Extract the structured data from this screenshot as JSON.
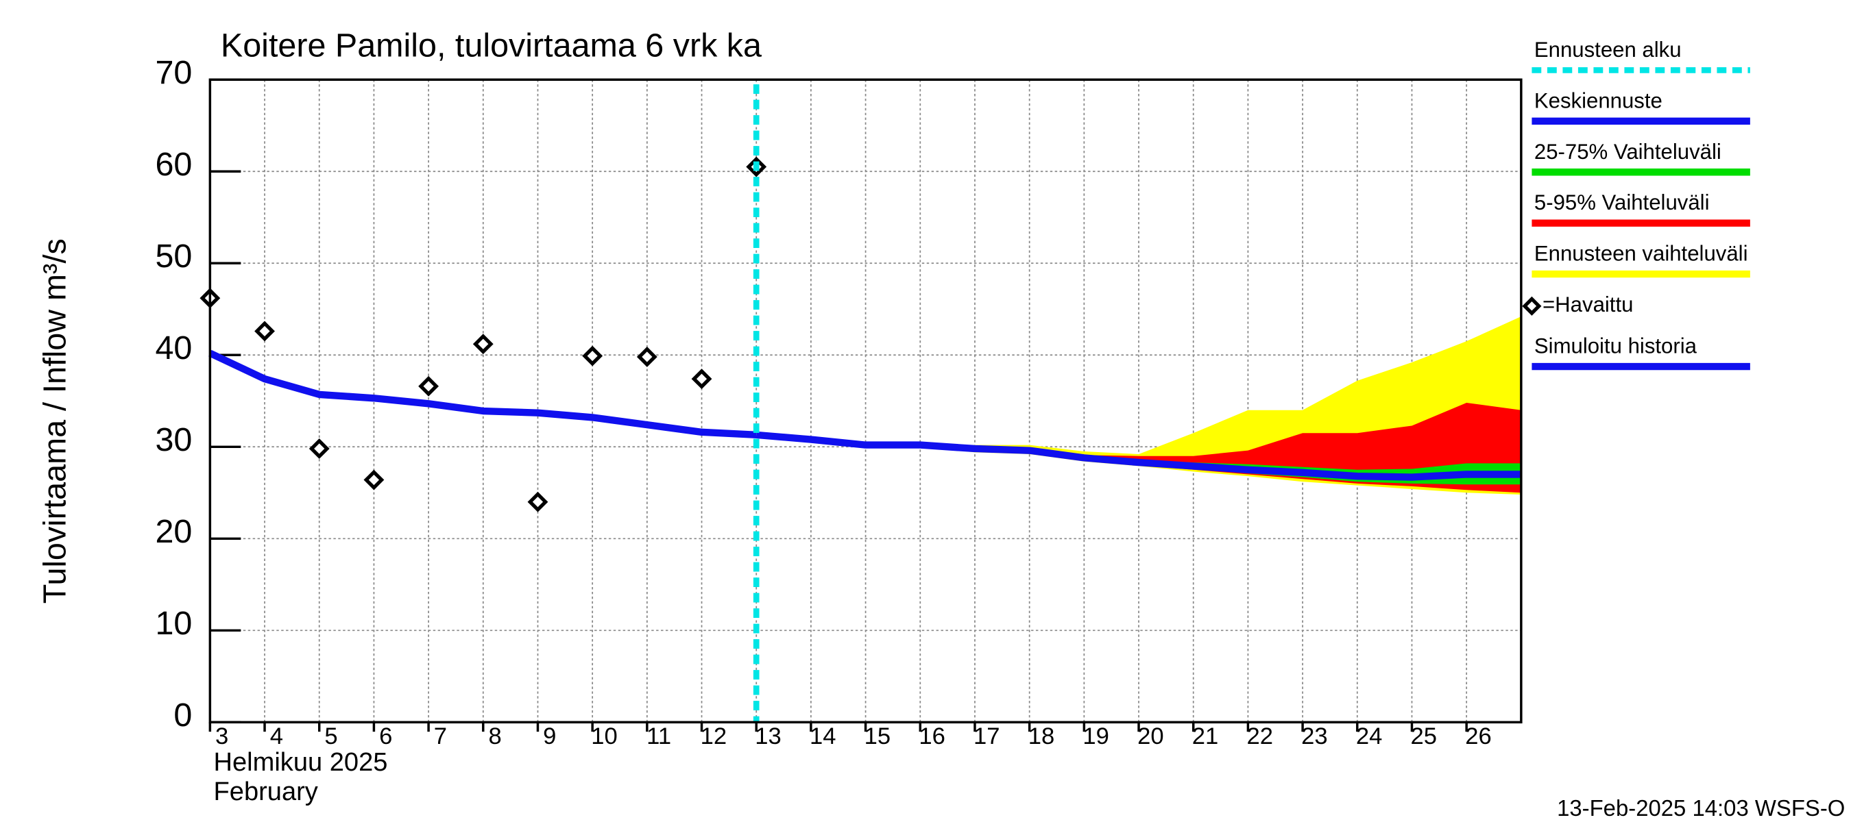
{
  "chart_data": {
    "type": "line",
    "title": "Koitere Pamilo, tulovirtaama  6 vrk ka",
    "y_label": "Tulovirtaama / Inflow    m³/s",
    "x_label_lines": [
      "Helmikuu  2025",
      "February"
    ],
    "footer": "13-Feb-2025 14:03 WSFS-O",
    "xlim": [
      3,
      27
    ],
    "xticks": [
      3,
      4,
      5,
      6,
      7,
      8,
      9,
      10,
      11,
      12,
      13,
      14,
      15,
      16,
      17,
      18,
      19,
      20,
      21,
      22,
      23,
      24,
      25,
      26
    ],
    "ylim": [
      0,
      70
    ],
    "yticks": [
      0,
      10,
      20,
      30,
      40,
      50,
      60,
      70
    ],
    "grid": true,
    "forecast_start": {
      "name": "Ennusteen alku",
      "value": 13,
      "color": "#00e5e5"
    },
    "series": [
      {
        "name": "Keskiennuste",
        "type": "line",
        "color": "#1010ee",
        "x": [
          13,
          14,
          15,
          16,
          17,
          18,
          19,
          20,
          21,
          22,
          23,
          24,
          25,
          26,
          27
        ],
        "values": [
          31.3,
          30.8,
          30.2,
          30.2,
          29.8,
          29.6,
          28.8,
          28.3,
          27.9,
          27.5,
          27.2,
          26.8,
          26.7,
          27.0,
          27.0
        ]
      },
      {
        "name": "25-75% Vaihteluväli",
        "type": "band",
        "color": "#00dd00",
        "x": [
          13,
          14,
          15,
          16,
          17,
          18,
          19,
          20,
          21,
          22,
          23,
          24,
          25,
          26,
          27
        ],
        "upper": [
          31.3,
          30.8,
          30.2,
          30.2,
          29.9,
          29.7,
          29.0,
          28.6,
          28.3,
          28.1,
          27.8,
          27.5,
          27.6,
          28.2,
          28.2
        ],
        "lower": [
          31.3,
          30.8,
          30.2,
          30.2,
          29.7,
          29.5,
          28.6,
          28.1,
          27.6,
          27.1,
          26.7,
          26.2,
          26.0,
          25.9,
          25.9
        ]
      },
      {
        "name": "5-95% Vaihteluväli",
        "type": "band",
        "color": "#ff0000",
        "x": [
          13,
          14,
          15,
          16,
          17,
          18,
          19,
          20,
          21,
          22,
          23,
          24,
          25,
          26,
          27
        ],
        "upper": [
          31.3,
          30.8,
          30.2,
          30.2,
          29.9,
          29.8,
          29.1,
          29.0,
          29.0,
          29.6,
          31.5,
          31.5,
          32.3,
          34.8,
          34.0
        ],
        "lower": [
          31.3,
          30.8,
          30.2,
          30.1,
          29.6,
          29.4,
          28.5,
          28.0,
          27.5,
          27.0,
          26.5,
          26.0,
          25.7,
          25.3,
          25.0
        ]
      },
      {
        "name": "Ennusteen vaihteluväli",
        "type": "band",
        "color": "#ffff00",
        "x": [
          13,
          14,
          15,
          16,
          17,
          18,
          19,
          20,
          21,
          22,
          23,
          24,
          25,
          26,
          27
        ],
        "upper": [
          31.3,
          30.8,
          30.2,
          30.3,
          30.2,
          30.2,
          29.5,
          29.2,
          31.5,
          34.0,
          34.0,
          37.2,
          39.2,
          41.5,
          44.2
        ],
        "lower": [
          31.3,
          30.8,
          30.2,
          30.0,
          29.4,
          29.2,
          28.4,
          27.9,
          27.3,
          26.8,
          26.2,
          25.8,
          25.4,
          25.0,
          24.8
        ]
      },
      {
        "name": "=Havaittu",
        "type": "scatter",
        "color": "#000000",
        "x": [
          3,
          4,
          5,
          6,
          7,
          8,
          9,
          10,
          11,
          12,
          13
        ],
        "values": [
          46.2,
          42.6,
          29.8,
          26.4,
          36.6,
          41.2,
          24.0,
          39.9,
          39.8,
          37.4,
          60.5
        ]
      },
      {
        "name": "Simuloitu historia",
        "type": "line",
        "color": "#1010ee",
        "x": [
          3,
          4,
          5,
          6,
          7,
          8,
          9,
          10,
          11,
          12,
          13
        ],
        "values": [
          40.2,
          37.4,
          35.7,
          35.3,
          34.7,
          33.9,
          33.7,
          33.2,
          32.4,
          31.6,
          31.3
        ]
      }
    ]
  }
}
